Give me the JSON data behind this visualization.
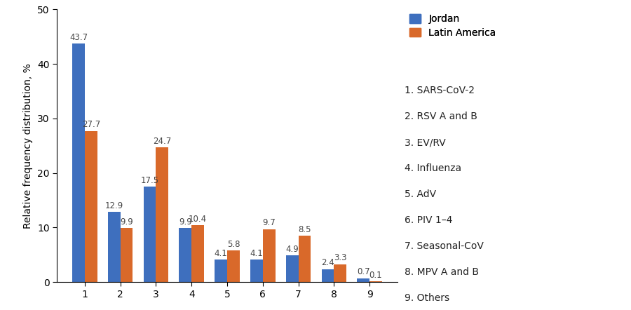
{
  "categories": [
    "1",
    "2",
    "3",
    "4",
    "5",
    "6",
    "7",
    "8",
    "9"
  ],
  "jordan": [
    43.7,
    12.9,
    17.5,
    9.9,
    4.1,
    4.1,
    4.9,
    2.4,
    0.7
  ],
  "latin_america": [
    27.7,
    9.9,
    24.7,
    10.4,
    5.8,
    9.7,
    8.5,
    3.3,
    0.1
  ],
  "jordan_color": "#3e6fbe",
  "latin_america_color": "#d9692a",
  "ylabel": "Relative frequency distribution, %",
  "ylim": [
    0,
    50
  ],
  "yticks": [
    0,
    10,
    20,
    30,
    40,
    50
  ],
  "legend_labels": [
    "Jordan",
    "Latin America"
  ],
  "legend_items": [
    "1. SARS-CoV-2",
    "2. RSV A and B",
    "3. EV/RV",
    "4. Influenza",
    "5. AdV",
    "6. PIV 1–4",
    "7. Seasonal-CoV",
    "8. MPV A and B",
    "9. Others"
  ],
  "bar_width": 0.35,
  "label_fontsize": 8.5,
  "axis_fontsize": 10,
  "legend_fontsize": 10,
  "background_color": "#ffffff"
}
